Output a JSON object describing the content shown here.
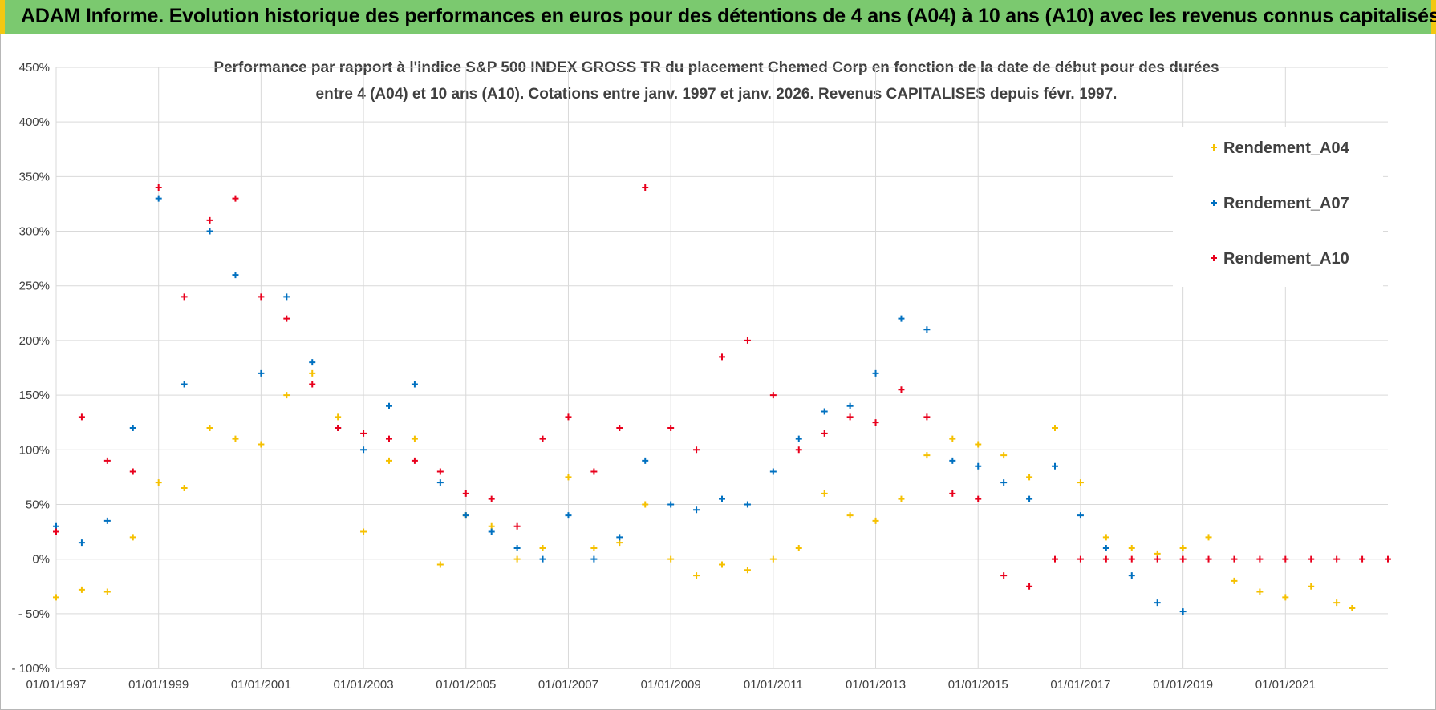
{
  "banner": {
    "title": "ADAM Informe. Evolution historique des performances en euros pour des détentions de 4 ans (A04) à 10 ans (A10) avec les revenus connus capitalisés"
  },
  "colors": {
    "banner_bg": "#7bc96f",
    "banner_edge": "#f2c811",
    "A04": "#f5c000",
    "A07": "#0070c0",
    "A10": "#e8001c"
  },
  "chart_data": {
    "type": "scatter",
    "title_line1": "Performance par rapport à l'indice S&P 500 INDEX GROSS TR  du placement Chemed Corp en fonction de la date de début pour des durées",
    "title_line2": "entre 4 (A04) et 10 ans (A10).  Cotations entre janv. 1997 et janv. 2026. Revenus CAPITALISES depuis févr. 1997.",
    "xlabel": "",
    "ylabel": "",
    "xlim": [
      1997.0,
      2023.0
    ],
    "ylim": [
      -100,
      450
    ],
    "y_ticks": [
      -100,
      -50,
      0,
      50,
      100,
      150,
      200,
      250,
      300,
      350,
      400,
      450
    ],
    "y_tick_labels": [
      "- 100%",
      "- 50%",
      "0%",
      "50%",
      "100%",
      "150%",
      "200%",
      "250%",
      "300%",
      "350%",
      "400%",
      "450%"
    ],
    "x_ticks": [
      1997,
      1999,
      2001,
      2003,
      2005,
      2007,
      2009,
      2011,
      2013,
      2015,
      2017,
      2019,
      2021
    ],
    "x_tick_labels": [
      "01/01/1997",
      "01/01/1999",
      "01/01/2001",
      "01/01/2003",
      "01/01/2005",
      "01/01/2007",
      "01/01/2009",
      "01/01/2011",
      "01/01/2013",
      "01/01/2015",
      "01/01/2017",
      "01/01/2019",
      "01/01/2021"
    ],
    "grid": true,
    "legend_position": "top-right",
    "series": [
      {
        "name": "Rendement_A04",
        "color": "#f5c000",
        "x": [
          1997.0,
          1997.5,
          1998.0,
          1998.5,
          1999.0,
          1999.5,
          2000.0,
          2000.5,
          2001.0,
          2001.5,
          2002.0,
          2002.5,
          2003.0,
          2003.5,
          2004.0,
          2004.5,
          2005.0,
          2005.5,
          2006.0,
          2006.5,
          2007.0,
          2007.5,
          2008.0,
          2008.5,
          2009.0,
          2009.5,
          2010.0,
          2010.5,
          2011.0,
          2011.5,
          2012.0,
          2012.5,
          2013.0,
          2013.5,
          2014.0,
          2014.5,
          2015.0,
          2015.5,
          2016.0,
          2016.5,
          2017.0,
          2017.5,
          2018.0,
          2018.5,
          2019.0,
          2019.5,
          2020.0,
          2020.5,
          2021.0,
          2021.5,
          2022.0,
          2022.3
        ],
        "y": [
          -35,
          -28,
          -30,
          20,
          70,
          65,
          120,
          110,
          105,
          150,
          170,
          130,
          25,
          90,
          110,
          -5,
          40,
          30,
          0,
          10,
          75,
          10,
          15,
          50,
          0,
          -15,
          -5,
          -10,
          0,
          10,
          60,
          40,
          35,
          55,
          95,
          110,
          105,
          95,
          75,
          120,
          70,
          20,
          10,
          5,
          10,
          20,
          -20,
          -30,
          -35,
          -25,
          -40,
          -45
        ]
      },
      {
        "name": "Rendement_A07",
        "color": "#0070c0",
        "x": [
          1997.0,
          1997.5,
          1998.0,
          1998.5,
          1999.0,
          1999.5,
          2000.0,
          2000.5,
          2001.0,
          2001.5,
          2002.0,
          2002.5,
          2003.0,
          2003.5,
          2004.0,
          2004.5,
          2005.0,
          2005.5,
          2006.0,
          2006.5,
          2007.0,
          2007.5,
          2008.0,
          2008.5,
          2009.0,
          2009.5,
          2010.0,
          2010.5,
          2011.0,
          2011.5,
          2012.0,
          2012.5,
          2013.0,
          2013.5,
          2014.0,
          2014.5,
          2015.0,
          2015.5,
          2016.0,
          2016.5,
          2017.0,
          2017.5,
          2018.0,
          2018.5,
          2019.0
        ],
        "y": [
          30,
          15,
          35,
          120,
          330,
          160,
          300,
          260,
          170,
          240,
          180,
          120,
          100,
          140,
          160,
          70,
          40,
          25,
          10,
          0,
          40,
          0,
          20,
          90,
          50,
          45,
          55,
          50,
          80,
          110,
          135,
          140,
          170,
          220,
          210,
          90,
          85,
          70,
          55,
          85,
          40,
          10,
          -15,
          -40,
          -48
        ]
      },
      {
        "name": "Rendement_A10",
        "color": "#e8001c",
        "x": [
          1997.0,
          1997.5,
          1998.0,
          1998.5,
          1999.0,
          1999.5,
          2000.0,
          2000.5,
          2001.0,
          2001.5,
          2002.0,
          2002.5,
          2003.0,
          2003.5,
          2004.0,
          2004.5,
          2005.0,
          2005.5,
          2006.0,
          2006.5,
          2007.0,
          2007.5,
          2008.0,
          2008.5,
          2009.0,
          2009.5,
          2010.0,
          2010.5,
          2011.0,
          2011.5,
          2012.0,
          2012.5,
          2013.0,
          2013.5,
          2014.0,
          2014.5,
          2015.0,
          2015.5,
          2016.0,
          2016.5,
          2017.0,
          2017.5,
          2018.0,
          2018.5,
          2019.0,
          2019.5,
          2020.0,
          2020.5,
          2021.0,
          2021.5,
          2022.0,
          2022.5,
          2023.0
        ],
        "y": [
          25,
          130,
          90,
          80,
          340,
          240,
          310,
          330,
          240,
          220,
          160,
          120,
          115,
          110,
          90,
          80,
          60,
          55,
          30,
          110,
          130,
          80,
          120,
          340,
          120,
          100,
          185,
          200,
          150,
          100,
          115,
          130,
          125,
          155,
          130,
          60,
          55,
          -15,
          -25,
          0,
          0,
          0,
          0,
          0,
          0,
          0,
          0,
          0,
          0,
          0,
          0,
          0,
          0
        ]
      }
    ]
  }
}
